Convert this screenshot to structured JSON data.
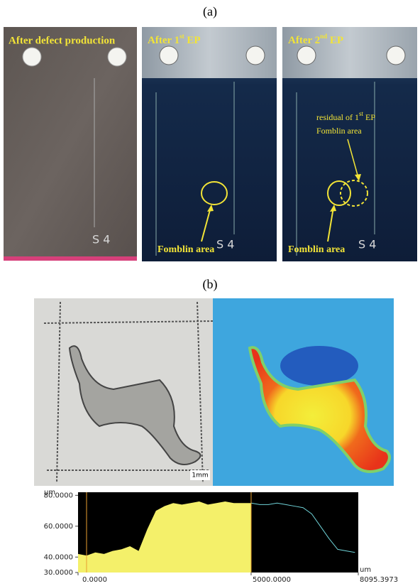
{
  "panel_a": {
    "label": "(a)",
    "photos": [
      {
        "caption": "After defect production",
        "mark": "S 4"
      },
      {
        "caption": {
          "text": "After 1",
          "sup": "st",
          "tail": " EP"
        },
        "mark": "S 4",
        "annotation": "Fomblin area"
      },
      {
        "caption": {
          "text": "After 2",
          "sup": "nd",
          "tail": " EP"
        },
        "mark": "S 4",
        "annotation": "Fomblin area",
        "residual": {
          "text": "residual of 1",
          "sup": "st",
          "tail": " EP",
          "line2": "Fomblin area"
        }
      }
    ]
  },
  "panel_b": {
    "label": "(b)",
    "scale_bar": "1mm"
  },
  "chart_data": {
    "type": "area",
    "x": [
      0,
      250,
      500,
      750,
      1000,
      1250,
      1500,
      1750,
      2000,
      2250,
      2500,
      2750,
      3000,
      3250,
      3500,
      3750,
      4000,
      4250,
      4500,
      4750,
      5000,
      5250,
      5500,
      5750,
      6000,
      6250,
      6500,
      6750,
      7000,
      7250,
      7500,
      7750,
      8000
    ],
    "series": [
      {
        "color": "#f4f06a",
        "values": [
          42,
          41,
          43,
          42,
          44,
          45,
          47,
          44,
          58,
          70,
          73,
          75,
          74,
          75,
          76,
          74,
          75,
          76,
          75,
          75,
          75,
          74,
          74,
          75,
          74,
          73,
          72,
          68,
          60,
          52,
          45,
          44,
          43
        ]
      }
    ],
    "y_unit": "um",
    "x_unit": "um",
    "xlim": [
      0,
      8095.3973
    ],
    "ylim": [
      30,
      82
    ],
    "xticks": [
      {
        "value": 0,
        "label": "0.0000"
      },
      {
        "value": 5000,
        "label": "5000.0000"
      },
      {
        "value": 8095.3973,
        "label": "8095.3973"
      }
    ],
    "yticks": [
      {
        "value": 80,
        "label": "80.0000"
      },
      {
        "value": 60,
        "label": "60.0000"
      },
      {
        "value": 40,
        "label": "40.0000"
      },
      {
        "value": 30,
        "label": "30.0000"
      }
    ]
  }
}
